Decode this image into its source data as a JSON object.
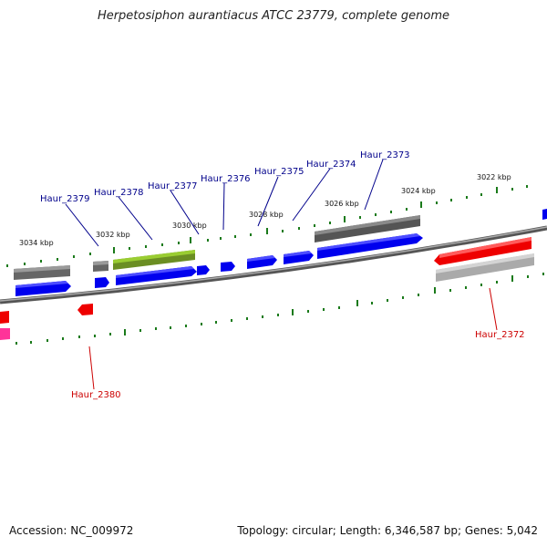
{
  "title": "Herpetosiphon aurantiacus ATCC 23779, complete genome",
  "footer": {
    "accession": "Accession: NC_009972",
    "topology": "Topology: circular; Length: 6,346,587 bp; Genes: 5,042"
  },
  "kbp_labels": [
    "3034 kbp",
    "3032 kbp",
    "3030 kbp",
    "3028 kbp",
    "3026 kbp",
    "3024 kbp",
    "3022 kbp"
  ],
  "gene_labels": {
    "Haur_2379": "Haur_2379",
    "Haur_2378": "Haur_2378",
    "Haur_2377": "Haur_2377",
    "Haur_2376": "Haur_2376",
    "Haur_2375": "Haur_2375",
    "Haur_2374": "Haur_2374",
    "Haur_2373": "Haur_2373",
    "Haur_2372": "Haur_2372",
    "Haur_2380": "Haur_2380"
  },
  "colors": {
    "forward_gene": "#0000ee",
    "reverse_gene": "#ee0000",
    "pseudo_gray": "#707070",
    "olive_gene": "#6b8e23",
    "pink_gene": "#ff3399",
    "tick_green": "#1a7a1a",
    "label_blue": "#00008b",
    "label_red": "#cc0000"
  }
}
